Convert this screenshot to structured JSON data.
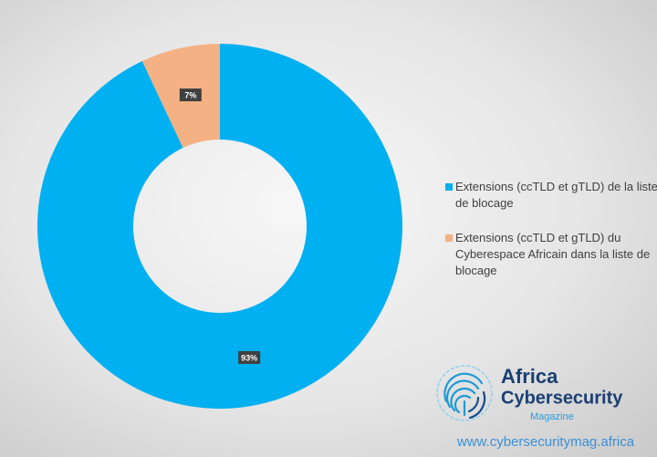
{
  "chart_data": {
    "type": "donut",
    "categories": [
      "Extensions (ccTLD et gTLD) de la liste de blocage",
      "Extensions (ccTLD et gTLD) du Cyberespace Africain dans la liste de blocage"
    ],
    "values": [
      93,
      7
    ],
    "value_labels": [
      "93%",
      "7%"
    ],
    "colors": [
      "#00b0f0",
      "#f4b183"
    ],
    "legend": "right"
  },
  "branding": {
    "name_line1": "Africa",
    "name_line2": "Cybersecurity",
    "name_line3": "Magazine",
    "url": "www.cybersecuritymag.africa"
  }
}
